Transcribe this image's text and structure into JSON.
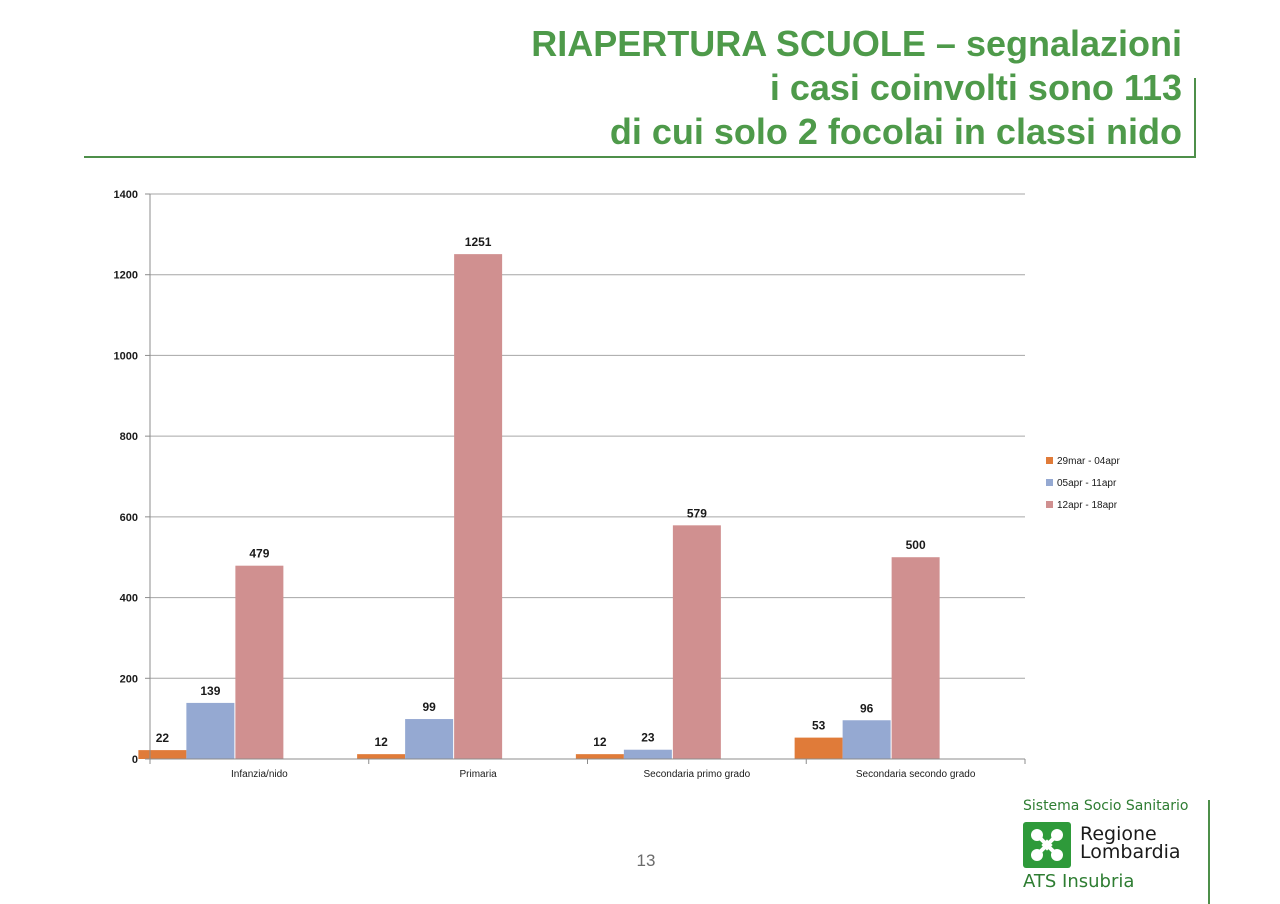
{
  "title_lines": [
    "RIAPERTURA SCUOLE – segnalazioni",
    "i casi coinvolti sono 113",
    "di cui solo 2 focolai in classi nido"
  ],
  "page_number": "13",
  "logo": {
    "top": "Sistema Socio Sanitario",
    "region_line1": "Regione",
    "region_line2": "Lombardia",
    "bottom": "ATS Insubria"
  },
  "chart_data": {
    "type": "bar",
    "categories": [
      "Infanzia/nido",
      "Primaria",
      "Secondaria primo grado",
      "Secondaria secondo grado"
    ],
    "series": [
      {
        "name": "29mar - 04apr",
        "values": [
          22,
          12,
          12,
          53
        ],
        "color": "#e07b39"
      },
      {
        "name": "05apr - 11apr",
        "values": [
          139,
          99,
          23,
          96
        ],
        "color": "#95a9d2"
      },
      {
        "name": "12apr - 18apr",
        "values": [
          479,
          1251,
          579,
          500
        ],
        "color": "#d09090"
      }
    ],
    "ylim": [
      0,
      1400
    ],
    "yticks": [
      0,
      200,
      400,
      600,
      800,
      1000,
      1200,
      1400
    ],
    "grid": true,
    "legend": "right",
    "data_labels": true
  }
}
